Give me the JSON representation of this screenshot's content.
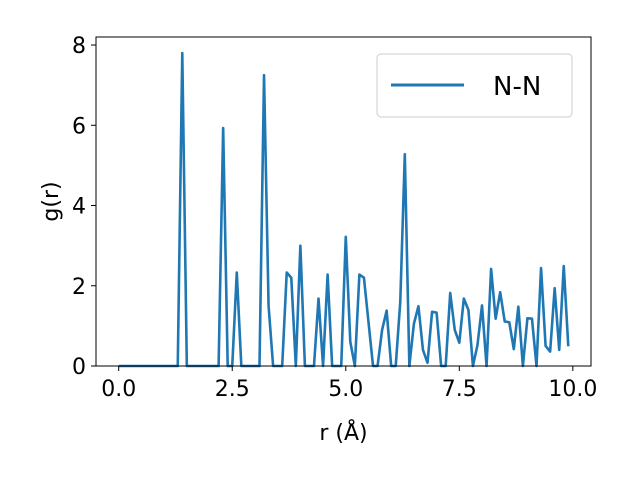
{
  "chart_data": {
    "type": "line",
    "title": "",
    "xlabel": "r (Å)",
    "ylabel": "g(r)",
    "xlim": [
      -0.5,
      10.4
    ],
    "ylim": [
      0,
      8.2
    ],
    "xticks": [
      0.0,
      2.5,
      5.0,
      7.5,
      10.0
    ],
    "xtick_labels": [
      "0.0",
      "2.5",
      "5.0",
      "7.5",
      "10.0"
    ],
    "yticks": [
      0,
      2,
      4,
      6,
      8
    ],
    "ytick_labels": [
      "0",
      "2",
      "4",
      "6",
      "8"
    ],
    "grid": false,
    "legend_position": "top-right",
    "series": [
      {
        "name": "N-N",
        "color": "#1f77b4",
        "x": [
          0.0,
          0.1,
          0.2,
          0.3,
          0.4,
          0.5,
          0.6,
          0.7,
          0.8,
          0.9,
          1.0,
          1.1,
          1.2,
          1.3,
          1.4,
          1.5,
          1.6,
          1.7,
          1.8,
          1.9,
          2.0,
          2.1,
          2.2,
          2.3,
          2.4,
          2.5,
          2.6,
          2.7,
          2.8,
          2.9,
          3.0,
          3.1,
          3.2,
          3.3,
          3.4,
          3.5,
          3.6,
          3.7,
          3.8,
          3.9,
          4.0,
          4.1,
          4.2,
          4.3,
          4.4,
          4.5,
          4.6,
          4.7,
          4.8,
          4.9,
          5.0,
          5.1,
          5.2,
          5.3,
          5.4,
          5.5,
          5.6,
          5.7,
          5.8,
          5.9,
          6.0,
          6.1,
          6.2,
          6.3,
          6.4,
          6.5,
          6.6,
          6.7,
          6.8,
          6.9,
          7.0,
          7.1,
          7.2,
          7.3,
          7.4,
          7.5,
          7.6,
          7.7,
          7.8,
          7.9,
          8.0,
          8.1,
          8.2,
          8.3,
          8.4,
          8.5,
          8.6,
          8.7,
          8.8,
          8.9,
          9.0,
          9.1,
          9.2,
          9.3,
          9.4,
          9.5,
          9.6,
          9.7,
          9.8,
          9.9
        ],
        "y": [
          0,
          0,
          0,
          0,
          0,
          0,
          0,
          0,
          0,
          0,
          0,
          0,
          0,
          0,
          7.8,
          0,
          0,
          0,
          0,
          0,
          0,
          0,
          0,
          5.93,
          0,
          0,
          2.33,
          0,
          0,
          0,
          0,
          0,
          7.25,
          1.5,
          0,
          0,
          0,
          2.33,
          2.2,
          0,
          3.0,
          0,
          0,
          0,
          1.68,
          0,
          2.28,
          0,
          0,
          0,
          3.22,
          0.6,
          0,
          2.28,
          2.2,
          1.1,
          0,
          0,
          0.9,
          1.38,
          0,
          0,
          1.6,
          5.28,
          0,
          1.05,
          1.49,
          0.4,
          0.08,
          1.35,
          1.33,
          0,
          0,
          1.82,
          0.9,
          0.58,
          1.68,
          1.4,
          0,
          0.52,
          1.51,
          0,
          2.42,
          1.18,
          1.84,
          1.11,
          1.09,
          0.42,
          1.48,
          0,
          1.19,
          1.18,
          0,
          2.44,
          0.5,
          0.36,
          1.94,
          0.4,
          2.49,
          0.49
        ]
      }
    ]
  }
}
